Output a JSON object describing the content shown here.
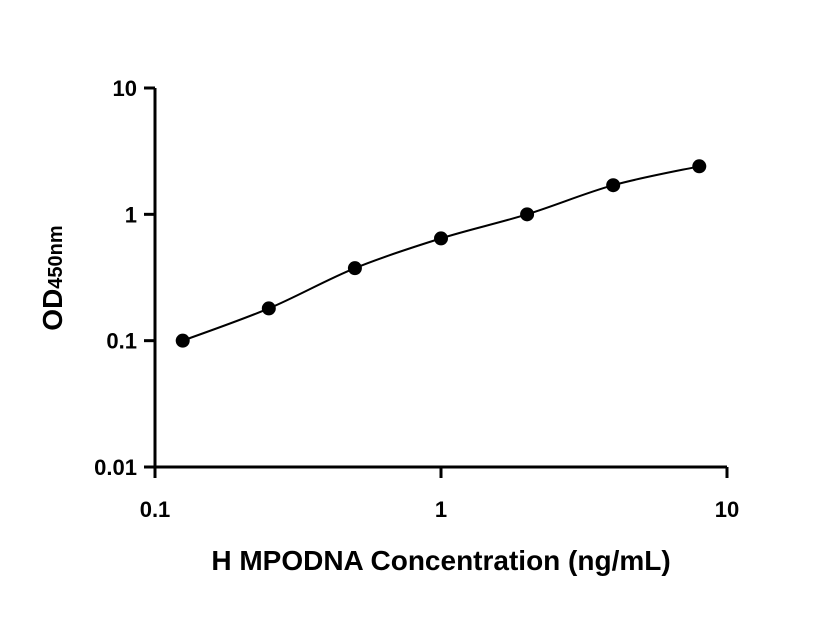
{
  "chart_data": {
    "type": "scatter",
    "x_scale": "log",
    "y_scale": "log",
    "xlabel": "H MPODNA Concentration (ng/mL)",
    "ylabel": "OD",
    "ylabel_subscript": "450nm",
    "xlim": [
      0.1,
      10
    ],
    "ylim": [
      0.01,
      10
    ],
    "x_ticks": [
      0.1,
      1,
      10
    ],
    "x_tick_labels": [
      "0.1",
      "1",
      "10"
    ],
    "y_ticks": [
      0.01,
      0.1,
      1,
      10
    ],
    "y_tick_labels": [
      "0.01",
      "0.1",
      "1",
      "10"
    ],
    "grid": false,
    "series": [
      {
        "x": [
          0.125,
          0.25,
          0.5,
          1,
          2,
          4,
          8
        ],
        "y": [
          0.1,
          0.18,
          0.375,
          0.645,
          1.0,
          1.7,
          2.4
        ],
        "marker_color": "#000000",
        "fit_line": true
      }
    ]
  }
}
